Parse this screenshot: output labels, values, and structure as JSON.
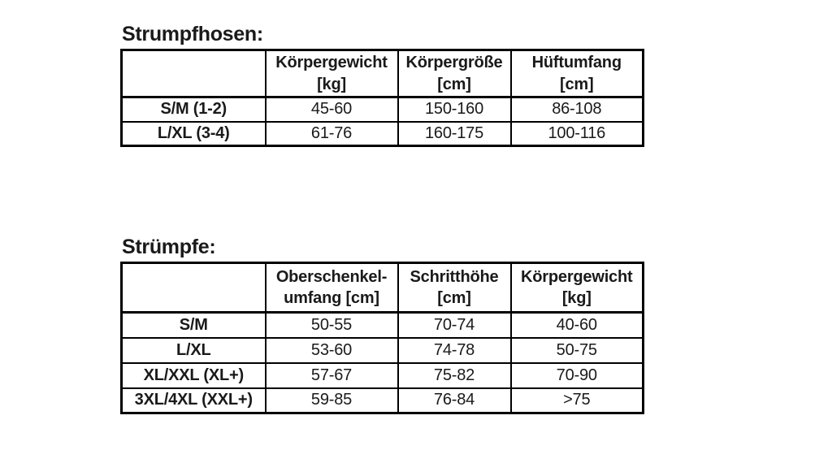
{
  "page": {
    "background": "#ffffff",
    "text_color": "#1a1a1a",
    "border_color": "#000000"
  },
  "tables": [
    {
      "id": "strumpfhosen",
      "title": "Strumpfhosen:",
      "headers": [
        {
          "line1": "Körpergewicht",
          "line2": "[kg]"
        },
        {
          "line1": "Körpergröße",
          "line2": "[cm]"
        },
        {
          "line1": "Hüftumfang",
          "line2": "[cm]"
        }
      ],
      "rows": [
        {
          "label": "S/M (1-2)",
          "values": [
            "45-60",
            "150-160",
            "86-108"
          ]
        },
        {
          "label": "L/XL (3-4)",
          "values": [
            "61-76",
            "160-175",
            "100-116"
          ]
        }
      ]
    },
    {
      "id": "struempfe",
      "title": "Strümpfe:",
      "headers": [
        {
          "line1": "Oberschenkel-",
          "line2": "umfang [cm]"
        },
        {
          "line1": "Schritthöhe",
          "line2": "[cm]"
        },
        {
          "line1": "Körpergewicht",
          "line2": "[kg]"
        }
      ],
      "rows": [
        {
          "label": "S/M",
          "values": [
            "50-55",
            "70-74",
            "40-60"
          ]
        },
        {
          "label": "L/XL",
          "values": [
            "53-60",
            "74-78",
            "50-75"
          ]
        },
        {
          "label": "XL/XXL (XL+)",
          "values": [
            "57-67",
            "75-82",
            "70-90"
          ]
        },
        {
          "label": "3XL/4XL (XXL+)",
          "values": [
            "59-85",
            "76-84",
            ">75"
          ]
        }
      ]
    }
  ]
}
